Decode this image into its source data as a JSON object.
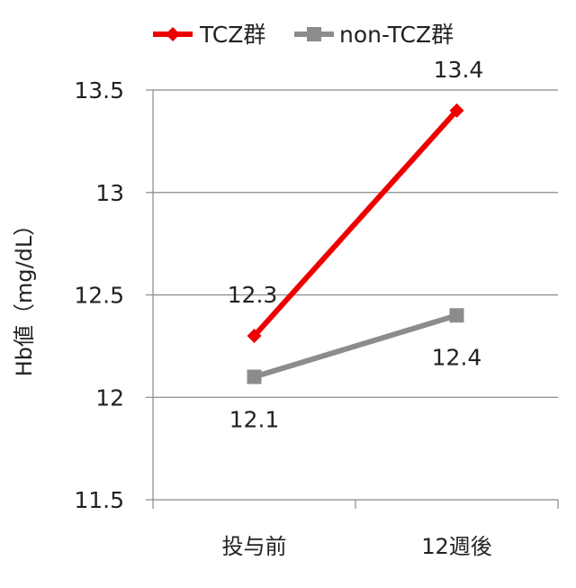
{
  "chart_data": {
    "type": "line",
    "categories": [
      "投与前",
      "12週後"
    ],
    "ylabel": "Hb値（mg/dL）",
    "ylim": [
      11.5,
      13.5
    ],
    "yticks": [
      "11.5",
      "12",
      "12.5",
      "13",
      "13.5"
    ],
    "grid": true,
    "legend": "top",
    "series": [
      {
        "name": "TCZ群",
        "values": [
          12.3,
          13.4
        ],
        "labels": [
          "12.3",
          "13.4"
        ],
        "color": "#ee0000",
        "marker": "diamond"
      },
      {
        "name": "non-TCZ群",
        "values": [
          12.1,
          12.4
        ],
        "labels": [
          "12.1",
          "12.4"
        ],
        "color": "#8c8c8c",
        "marker": "square"
      }
    ]
  }
}
